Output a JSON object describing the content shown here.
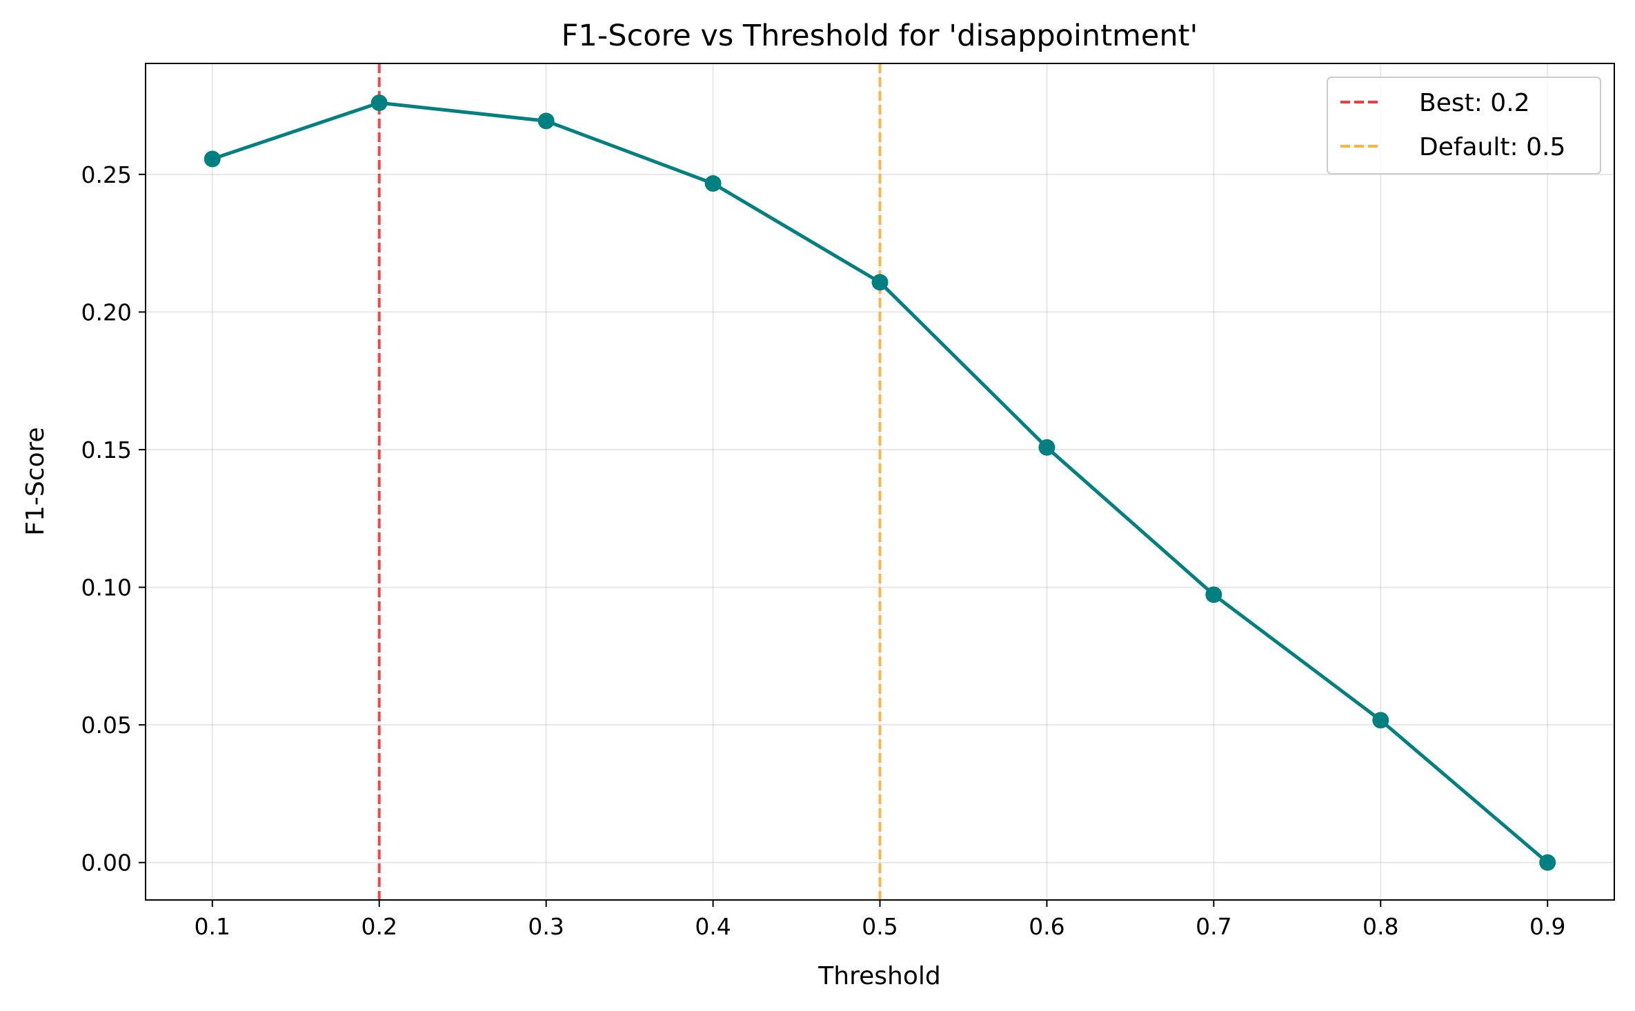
{
  "chart_data": {
    "type": "line",
    "title": "F1-Score vs Threshold for 'disappointment'",
    "xlabel": "Threshold",
    "ylabel": "F1-Score",
    "xlim": [
      0.06,
      0.94
    ],
    "ylim": [
      -0.0136,
      0.2903
    ],
    "xticks": [
      0.1,
      0.2,
      0.3,
      0.4,
      0.5,
      0.6,
      0.7,
      0.8,
      0.9
    ],
    "xtick_labels": [
      "0.1",
      "0.2",
      "0.3",
      "0.4",
      "0.5",
      "0.6",
      "0.7",
      "0.8",
      "0.9"
    ],
    "yticks": [
      0.0,
      0.05,
      0.1,
      0.15,
      0.2,
      0.25
    ],
    "ytick_labels": [
      "0.00",
      "0.05",
      "0.10",
      "0.15",
      "0.20",
      "0.25"
    ],
    "grid": true,
    "legend_position": "top-right",
    "series": [
      {
        "x": [
          0.1,
          0.2,
          0.3,
          0.4,
          0.5,
          0.6,
          0.7,
          0.8,
          0.9
        ],
        "y": [
          0.2556,
          0.276,
          0.2694,
          0.2467,
          0.2108,
          0.1508,
          0.0973,
          0.0517,
          0.0
        ],
        "color": "#008080",
        "marker": "circle"
      }
    ],
    "reference_lines": [
      {
        "x": 0.2,
        "label": "Best: 0.2",
        "color": "#f03e3e",
        "style": "dashed"
      },
      {
        "x": 0.5,
        "label": "Default: 0.5",
        "color": "#fbb33f",
        "style": "dashed"
      }
    ]
  }
}
